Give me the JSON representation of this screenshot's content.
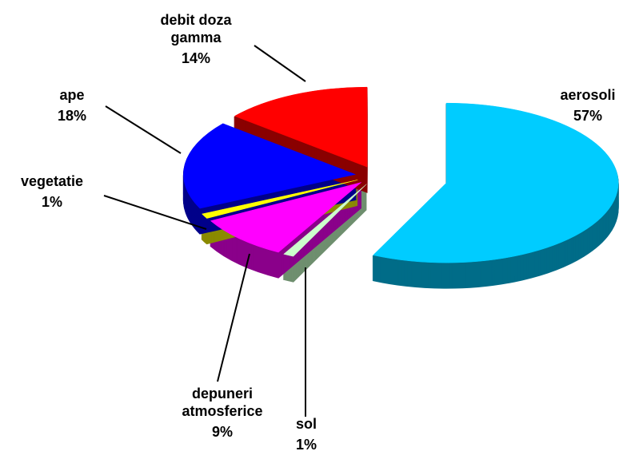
{
  "chart_data": {
    "type": "pie",
    "categories": [
      "aerosoli",
      "sol",
      "depuneri atmosferice",
      "vegetatie",
      "ape",
      "debit doza gamma"
    ],
    "values": [
      57,
      1,
      9,
      1,
      18,
      14
    ],
    "value_labels": [
      "57%",
      "1%",
      "9%",
      "1%",
      "18%",
      "14%"
    ],
    "colors": [
      "#00ccff",
      "#ccffcc",
      "#ff00ff",
      "#ffff00",
      "#0000ff",
      "#ff0000"
    ],
    "side_colors": [
      "#006c88",
      "#6f8f6f",
      "#8a008a",
      "#8a8a00",
      "#00008a",
      "#8a0000"
    ]
  }
}
